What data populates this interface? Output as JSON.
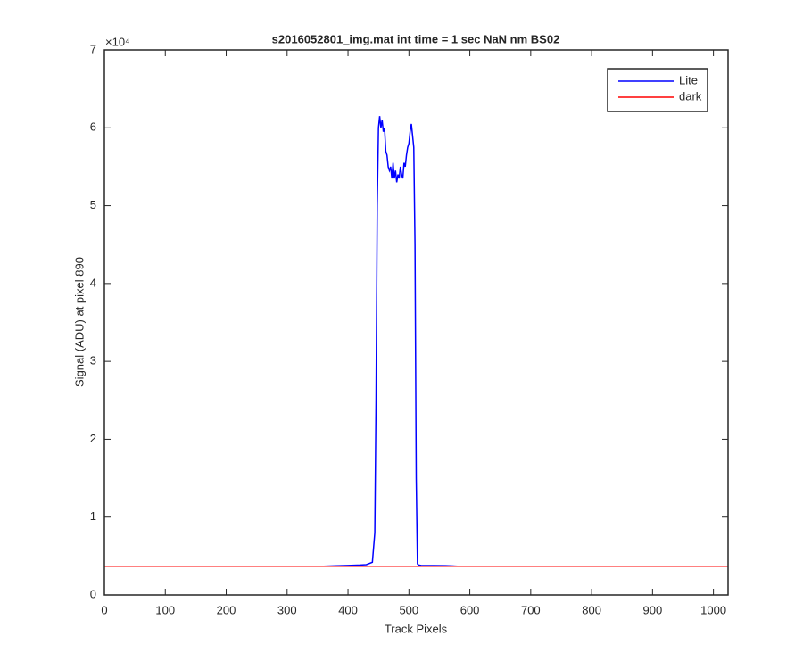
{
  "chart_data": {
    "type": "line",
    "title": "s2016052801_img.mat int time = 1 sec  NaN nm BS02",
    "x_label": "Track Pixels",
    "y_label": "Signal (ADU) at pixel 890",
    "y_exponent_label": "×10⁴",
    "x": [
      0,
      20,
      40,
      60,
      80,
      100,
      120,
      140,
      160,
      180,
      200,
      220,
      240,
      260,
      280,
      300,
      320,
      340,
      360,
      380,
      400,
      420,
      430,
      440,
      444,
      446,
      448,
      450,
      452,
      454,
      456,
      458,
      460,
      462,
      464,
      466,
      468,
      470,
      472,
      474,
      476,
      478,
      480,
      482,
      484,
      486,
      488,
      490,
      492,
      494,
      496,
      498,
      500,
      502,
      504,
      506,
      508,
      510,
      512,
      514,
      516,
      520,
      540,
      560,
      580,
      600,
      620,
      640,
      660,
      680,
      700,
      720,
      740,
      760,
      780,
      800,
      820,
      840,
      860,
      880,
      900,
      920,
      940,
      960,
      980,
      1000,
      1020,
      1023
    ],
    "series": [
      {
        "name": "Lite",
        "color": "#0000ff",
        "values": [
          3700,
          3700,
          3700,
          3700,
          3700,
          3700,
          3700,
          3700,
          3700,
          3700,
          3700,
          3700,
          3700,
          3700,
          3700,
          3700,
          3700,
          3700,
          3700,
          3750,
          3800,
          3850,
          3900,
          4200,
          8000,
          25000,
          50000,
          60000,
          61500,
          60000,
          61000,
          59500,
          60000,
          57000,
          56500,
          55000,
          54500,
          55000,
          53500,
          55500,
          53500,
          54500,
          53000,
          54000,
          53500,
          55000,
          54000,
          53500,
          55500,
          55000,
          56500,
          57500,
          58000,
          59500,
          60500,
          59000,
          57500,
          45000,
          15000,
          4000,
          3850,
          3800,
          3780,
          3760,
          3700,
          3700,
          3700,
          3700,
          3700,
          3700,
          3700,
          3700,
          3700,
          3700,
          3700,
          3700,
          3700,
          3700,
          3700,
          3700,
          3700,
          3700,
          3700,
          3700,
          3700,
          3700,
          3700,
          3700
        ]
      },
      {
        "name": "dark",
        "color": "#ff0000",
        "values": [
          3700,
          3700,
          3700,
          3700,
          3700,
          3700,
          3700,
          3700,
          3700,
          3700,
          3700,
          3700,
          3700,
          3700,
          3700,
          3700,
          3700,
          3700,
          3700,
          3700,
          3700,
          3700,
          3700,
          3700,
          3700,
          3700,
          3700,
          3700,
          3700,
          3700,
          3700,
          3700,
          3700,
          3700,
          3700,
          3700,
          3700,
          3700,
          3700,
          3700,
          3700,
          3700,
          3700,
          3700,
          3700,
          3700,
          3700,
          3700,
          3700,
          3700,
          3700,
          3700,
          3700,
          3700,
          3700,
          3700,
          3700,
          3700,
          3700,
          3700,
          3700,
          3700,
          3700,
          3700,
          3700,
          3700,
          3700,
          3700,
          3700,
          3700,
          3700,
          3700,
          3700,
          3700,
          3700,
          3700,
          3700,
          3700,
          3700,
          3700,
          3700,
          3700,
          3700,
          3700,
          3700,
          3700,
          3700,
          3700
        ]
      }
    ],
    "xlim": [
      0,
      1024
    ],
    "xticks": [
      0,
      100,
      200,
      300,
      400,
      500,
      600,
      700,
      800,
      900,
      1000
    ],
    "ylim": [
      0,
      70000
    ],
    "yticks": [
      {
        "value": 0,
        "label": "0"
      },
      {
        "value": 10000,
        "label": "1"
      },
      {
        "value": 20000,
        "label": "2"
      },
      {
        "value": 30000,
        "label": "3"
      },
      {
        "value": 40000,
        "label": "4"
      },
      {
        "value": 50000,
        "label": "5"
      },
      {
        "value": 60000,
        "label": "6"
      },
      {
        "value": 70000,
        "label": "7"
      }
    ],
    "legend": "top-right",
    "grid": false
  }
}
